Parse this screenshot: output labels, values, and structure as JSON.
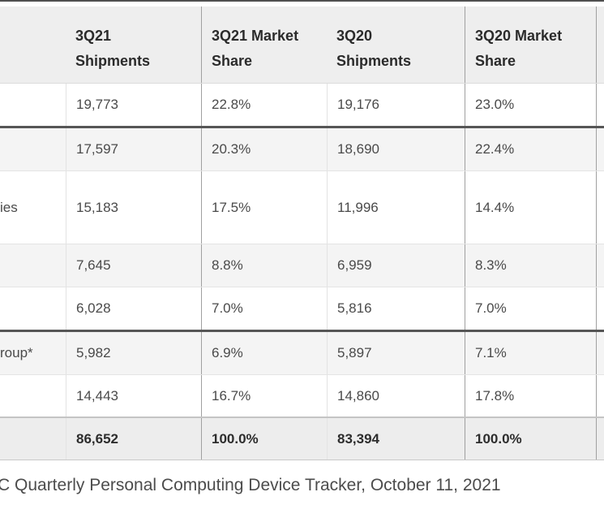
{
  "chart_data": {
    "type": "table",
    "title_visible": false,
    "header": {
      "company": "",
      "shipments_3q21": {
        "line1": "3Q21",
        "line2": "Shipments"
      },
      "share_3q21": {
        "line1": "3Q21 Market",
        "line2": "Share"
      },
      "shipments_3q20": {
        "line1": "3Q20",
        "line2": "Shipments"
      },
      "share_3q20": {
        "line1": "3Q20 Market",
        "line2": "Share"
      }
    },
    "rows": [
      {
        "company": "",
        "s21": "19,773",
        "ms21": "22.8%",
        "s20": "19,176",
        "ms20": "23.0%"
      },
      {
        "company": "",
        "s21": "17,597",
        "ms21": "20.3%",
        "s20": "18,690",
        "ms20": "22.4%"
      },
      {
        "company": "ies",
        "s21": "15,183",
        "ms21": "17.5%",
        "s20": "11,996",
        "ms20": "14.4%"
      },
      {
        "company": "",
        "s21": "7,645",
        "ms21": "8.8%",
        "s20": "6,959",
        "ms20": "8.3%"
      },
      {
        "company": "",
        "s21": "6,028",
        "ms21": "7.0%",
        "s20": "5,816",
        "ms20": "7.0%"
      },
      {
        "company": "roup*",
        "s21": "5,982",
        "ms21": "6.9%",
        "s20": "5,897",
        "ms20": "7.1%"
      },
      {
        "company": "",
        "s21": "14,443",
        "ms21": "16.7%",
        "s20": "14,860",
        "ms20": "17.8%"
      }
    ],
    "total": {
      "company": "",
      "s21": "86,652",
      "ms21": "100.0%",
      "s20": "83,394",
      "ms20": "100.0%"
    },
    "source_note": "C Quarterly Personal Computing Device Tracker, October 11, 2021"
  },
  "colors": {
    "top_line": "#4f4f4f",
    "header_bg": "#eeeeee",
    "zebra_row_bg": "#f4f4f4",
    "total_row_bg": "#ededed",
    "group_divider": "#565656",
    "row_divider": "#e4e4e4",
    "column_divider_strong": "#a0a0a0",
    "column_divider_light": "#e3e3e3",
    "text": "#4a4a4a",
    "text_bold": "#2b2b2b"
  }
}
